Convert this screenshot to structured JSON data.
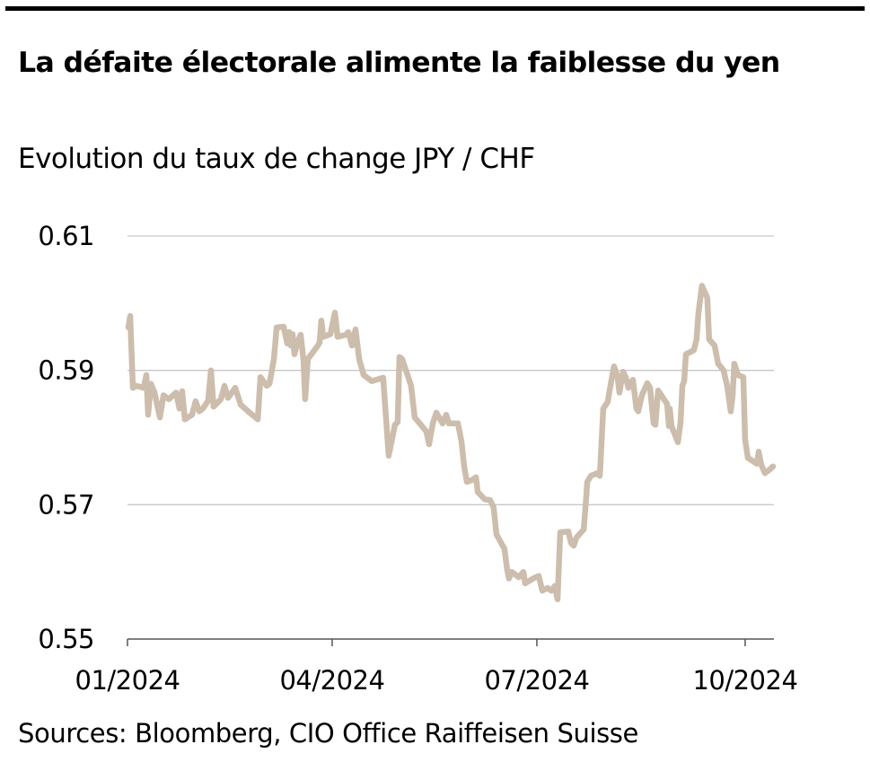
{
  "title": "La défaite électorale alimente la faiblesse du yen",
  "subtitle": "Evolution du taux de change JPY / CHF",
  "source": "Sources: Bloomberg, CIO Office Raiffeisen Suisse",
  "colors": {
    "line": "#cdbdac",
    "grid": "#c8c8c8",
    "axis": "#555555",
    "rule": "#000000"
  },
  "chart_data": {
    "type": "line",
    "title": "La défaite électorale alimente la faiblesse du yen",
    "subtitle": "Evolution du taux de change JPY / CHF",
    "xlabel": "",
    "ylabel": "",
    "x_unit": "days since 01/2024",
    "xlim": [
      0,
      287.4
    ],
    "ylim": [
      0.55,
      0.61
    ],
    "grid": true,
    "legend": "none",
    "y_ticks": [
      {
        "value": 0.61,
        "label": "0.61"
      },
      {
        "value": 0.59,
        "label": "0.59"
      },
      {
        "value": 0.57,
        "label": "0.57"
      },
      {
        "value": 0.55,
        "label": "0.55"
      }
    ],
    "x_ticks": [
      {
        "value": 0,
        "label": "01/2024"
      },
      {
        "value": 91,
        "label": "04/2024"
      },
      {
        "value": 182,
        "label": "07/2024"
      },
      {
        "value": 274.6,
        "label": "10/2024"
      }
    ],
    "series": [
      {
        "name": "JPY / CHF",
        "points": [
          [
            0.4,
            0.5964
          ],
          [
            1.2,
            0.5981
          ],
          [
            2.4,
            0.5874
          ],
          [
            4.0,
            0.5877
          ],
          [
            7.2,
            0.5874
          ],
          [
            8.4,
            0.5893
          ],
          [
            9.2,
            0.5834
          ],
          [
            10.4,
            0.588
          ],
          [
            12.0,
            0.5867
          ],
          [
            14.4,
            0.583
          ],
          [
            16.0,
            0.5863
          ],
          [
            18.4,
            0.5857
          ],
          [
            21.6,
            0.5867
          ],
          [
            23.1,
            0.5843
          ],
          [
            24.3,
            0.5869
          ],
          [
            25.5,
            0.5827
          ],
          [
            28.7,
            0.5834
          ],
          [
            30.3,
            0.5854
          ],
          [
            31.9,
            0.5839
          ],
          [
            33.5,
            0.5843
          ],
          [
            35.9,
            0.5855
          ],
          [
            37.1,
            0.59
          ],
          [
            38.3,
            0.5846
          ],
          [
            41.5,
            0.5857
          ],
          [
            43.1,
            0.5877
          ],
          [
            44.7,
            0.5859
          ],
          [
            47.9,
            0.5874
          ],
          [
            50.3,
            0.5849
          ],
          [
            54.3,
            0.5837
          ],
          [
            57.9,
            0.5827
          ],
          [
            59.1,
            0.589
          ],
          [
            61.9,
            0.5877
          ],
          [
            63.1,
            0.588
          ],
          [
            65.1,
            0.5917
          ],
          [
            66.3,
            0.5964
          ],
          [
            69.4,
            0.5965
          ],
          [
            71.0,
            0.594
          ],
          [
            71.8,
            0.5957
          ],
          [
            72.6,
            0.5937
          ],
          [
            73.4,
            0.5954
          ],
          [
            74.2,
            0.5924
          ],
          [
            75.8,
            0.5944
          ],
          [
            77.0,
            0.5953
          ],
          [
            78.2,
            0.5917
          ],
          [
            79.0,
            0.5857
          ],
          [
            80.2,
            0.5917
          ],
          [
            83.8,
            0.5933
          ],
          [
            85.4,
            0.5941
          ],
          [
            86.2,
            0.5974
          ],
          [
            87.0,
            0.595
          ],
          [
            90.2,
            0.5954
          ],
          [
            92.2,
            0.5986
          ],
          [
            93.4,
            0.595
          ],
          [
            97.0,
            0.5953
          ],
          [
            98.2,
            0.5957
          ],
          [
            99.8,
            0.5937
          ],
          [
            101.4,
            0.5961
          ],
          [
            103.0,
            0.5917
          ],
          [
            105.0,
            0.5893
          ],
          [
            108.6,
            0.5884
          ],
          [
            113.7,
            0.5889
          ],
          [
            116.1,
            0.5773
          ],
          [
            118.9,
            0.5819
          ],
          [
            120.1,
            0.5823
          ],
          [
            120.9,
            0.592
          ],
          [
            122.1,
            0.5917
          ],
          [
            126.1,
            0.5877
          ],
          [
            127.7,
            0.583
          ],
          [
            132.9,
            0.5809
          ],
          [
            134.1,
            0.579
          ],
          [
            135.7,
            0.5821
          ],
          [
            137.3,
            0.5837
          ],
          [
            140.1,
            0.5821
          ],
          [
            141.7,
            0.5834
          ],
          [
            142.9,
            0.5821
          ],
          [
            146.9,
            0.5821
          ],
          [
            148.5,
            0.5794
          ],
          [
            149.7,
            0.5757
          ],
          [
            150.9,
            0.5734
          ],
          [
            153.3,
            0.5737
          ],
          [
            154.9,
            0.5741
          ],
          [
            155.7,
            0.5719
          ],
          [
            158.8,
            0.5708
          ],
          [
            161.2,
            0.5707
          ],
          [
            162.8,
            0.5696
          ],
          [
            164.0,
            0.5656
          ],
          [
            167.6,
            0.5634
          ],
          [
            168.8,
            0.5603
          ],
          [
            169.6,
            0.559
          ],
          [
            170.8,
            0.56
          ],
          [
            174.0,
            0.5592
          ],
          [
            176.0,
            0.56
          ],
          [
            176.8,
            0.5583
          ],
          [
            180.4,
            0.559
          ],
          [
            182.8,
            0.5594
          ],
          [
            184.4,
            0.5572
          ],
          [
            186.8,
            0.5576
          ],
          [
            188.4,
            0.5572
          ],
          [
            190.0,
            0.5579
          ],
          [
            191.2,
            0.5559
          ],
          [
            192.4,
            0.5659
          ],
          [
            196.0,
            0.566
          ],
          [
            197.2,
            0.5643
          ],
          [
            198.4,
            0.5639
          ],
          [
            199.6,
            0.5651
          ],
          [
            202.8,
            0.5663
          ],
          [
            203.6,
            0.5696
          ],
          [
            204.4,
            0.5734
          ],
          [
            206.0,
            0.5743
          ],
          [
            208.8,
            0.5747
          ],
          [
            210.0,
            0.5743
          ],
          [
            211.5,
            0.5843
          ],
          [
            213.5,
            0.5853
          ],
          [
            214.7,
            0.5877
          ],
          [
            216.3,
            0.5906
          ],
          [
            217.9,
            0.589
          ],
          [
            218.7,
            0.5867
          ],
          [
            220.3,
            0.5898
          ],
          [
            221.5,
            0.589
          ],
          [
            222.7,
            0.5874
          ],
          [
            224.7,
            0.5886
          ],
          [
            226.3,
            0.5843
          ],
          [
            227.1,
            0.5839
          ],
          [
            228.7,
            0.5863
          ],
          [
            231.1,
            0.5881
          ],
          [
            232.3,
            0.5874
          ],
          [
            233.9,
            0.5821
          ],
          [
            234.7,
            0.5819
          ],
          [
            235.9,
            0.587
          ],
          [
            239.9,
            0.585
          ],
          [
            240.7,
            0.5817
          ],
          [
            241.1,
            0.5843
          ],
          [
            241.9,
            0.5817
          ],
          [
            244.7,
            0.5793
          ],
          [
            245.9,
            0.5823
          ],
          [
            246.7,
            0.5877
          ],
          [
            247.5,
            0.5884
          ],
          [
            248.3,
            0.5924
          ],
          [
            251.8,
            0.593
          ],
          [
            253.0,
            0.5946
          ],
          [
            253.8,
            0.5984
          ],
          [
            255.4,
            0.6026
          ],
          [
            257.8,
            0.6008
          ],
          [
            258.6,
            0.5946
          ],
          [
            261.0,
            0.5937
          ],
          [
            262.6,
            0.591
          ],
          [
            265.0,
            0.59
          ],
          [
            266.6,
            0.5877
          ],
          [
            268.2,
            0.5839
          ],
          [
            269.0,
            0.5861
          ],
          [
            269.8,
            0.591
          ],
          [
            271.4,
            0.5893
          ],
          [
            273.8,
            0.589
          ],
          [
            274.6,
            0.5797
          ],
          [
            275.8,
            0.577
          ],
          [
            279.8,
            0.5761
          ],
          [
            280.6,
            0.5779
          ],
          [
            281.8,
            0.5759
          ],
          [
            283.4,
            0.5747
          ],
          [
            285.0,
            0.5751
          ],
          [
            287.0,
            0.5757
          ]
        ]
      }
    ]
  }
}
